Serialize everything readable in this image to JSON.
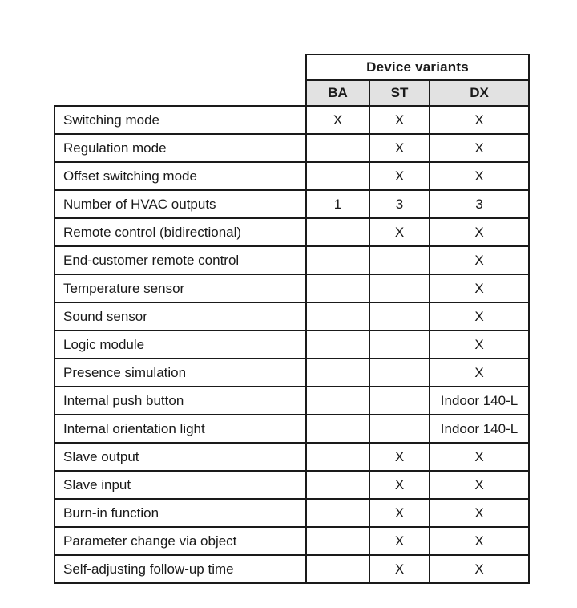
{
  "table": {
    "group_header": "Device variants",
    "columns": [
      "BA",
      "ST",
      "DX"
    ],
    "rows": [
      {
        "label": "Switching mode",
        "values": [
          "X",
          "X",
          "X"
        ]
      },
      {
        "label": "Regulation mode",
        "values": [
          "",
          "X",
          "X"
        ]
      },
      {
        "label": "Offset switching mode",
        "values": [
          "",
          "X",
          "X"
        ]
      },
      {
        "label": "Number of HVAC outputs",
        "values": [
          "1",
          "3",
          "3"
        ]
      },
      {
        "label": "Remote control (bidirectional)",
        "values": [
          "",
          "X",
          "X"
        ]
      },
      {
        "label": "End-customer remote control",
        "values": [
          "",
          "",
          "X"
        ]
      },
      {
        "label": "Temperature sensor",
        "values": [
          "",
          "",
          "X"
        ]
      },
      {
        "label": "Sound sensor",
        "values": [
          "",
          "",
          "X"
        ]
      },
      {
        "label": "Logic module",
        "values": [
          "",
          "",
          "X"
        ]
      },
      {
        "label": "Presence simulation",
        "values": [
          "",
          "",
          "X"
        ]
      },
      {
        "label": "Internal push button",
        "values": [
          "",
          "",
          "Indoor 140-L"
        ]
      },
      {
        "label": "Internal orientation light",
        "values": [
          "",
          "",
          "Indoor 140-L"
        ]
      },
      {
        "label": "Slave output",
        "values": [
          "",
          "X",
          "X"
        ]
      },
      {
        "label": "Slave input",
        "values": [
          "",
          "X",
          "X"
        ]
      },
      {
        "label": "Burn-in function",
        "values": [
          "",
          "X",
          "X"
        ]
      },
      {
        "label": "Parameter change via object",
        "values": [
          "",
          "X",
          "X"
        ]
      },
      {
        "label": "Self-adjusting follow-up time",
        "values": [
          "",
          "X",
          "X"
        ]
      }
    ],
    "colors": {
      "header_bg": "#e2e2e2",
      "border": "#1a1a1a",
      "text": "#1a1a1a"
    }
  }
}
